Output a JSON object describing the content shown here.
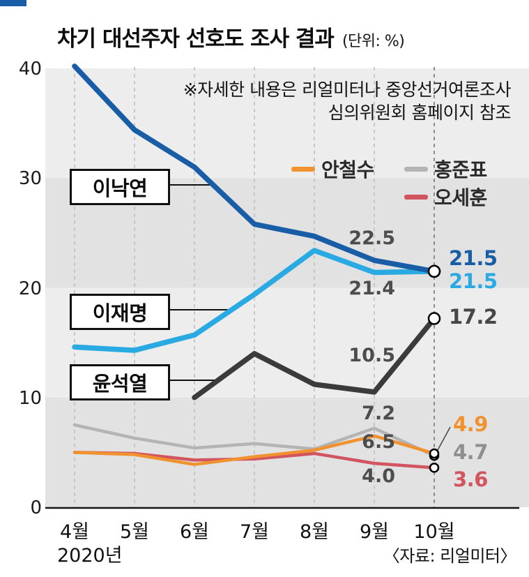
{
  "chart_data": {
    "type": "line",
    "title": "차기 대선주자 선호도 조사 결과",
    "unit": "(단위: %)",
    "note": [
      "※자세한 내용은 리얼미터나 중앙선거여론조사",
      "심의위원회 홈페이지 참조"
    ],
    "source": "〈자료: 리얼미터〉",
    "x_year": "2020년",
    "categories": [
      "4월",
      "5월",
      "6월",
      "7월",
      "8월",
      "9월",
      "10월"
    ],
    "yticks": [
      0,
      10,
      20,
      30,
      40
    ],
    "ylim": [
      0,
      40
    ],
    "grid": "vertical-dashed",
    "legend_position": "inside-top-right",
    "series": [
      {
        "id": "lee-nak-yeon",
        "name": "이낙연",
        "color": "#1a5da7",
        "end_label": "21.5",
        "end_label_color": "#1a5da7",
        "values": [
          40.2,
          34.4,
          31.0,
          25.8,
          24.7,
          22.5,
          21.5
        ]
      },
      {
        "id": "lee-jae-myung",
        "name": "이재명",
        "color": "#2aaae2",
        "end_label": "21.5",
        "end_label_color": "#2aaae2",
        "values": [
          14.6,
          14.3,
          15.7,
          19.4,
          23.4,
          21.4,
          21.5
        ]
      },
      {
        "id": "yoon-seok-youl",
        "name": "윤석열",
        "color": "#3b3b3b",
        "end_label": "17.2",
        "end_label_color": "#474747",
        "values": [
          null,
          null,
          10.0,
          14.0,
          11.2,
          10.5,
          17.2
        ]
      },
      {
        "id": "ahn-cheol-soo",
        "name": "안철수",
        "color": "#f0922f",
        "end_label": "4.9",
        "end_label_color": "#f0922f",
        "values": [
          5.0,
          4.8,
          3.9,
          4.6,
          5.2,
          6.5,
          4.9
        ]
      },
      {
        "id": "hong-jun-pyo",
        "name": "홍준표",
        "color": "#b4b4b4",
        "end_label": "4.7",
        "end_label_color": "#8f8f8f",
        "values": [
          7.5,
          6.3,
          5.4,
          5.8,
          5.3,
          7.2,
          4.7
        ]
      },
      {
        "id": "oh-se-hoon",
        "name": "오세훈",
        "color": "#d2545f",
        "end_label": "3.6",
        "end_label_color": "#d2545f",
        "values": [
          5.0,
          4.9,
          4.3,
          4.4,
          4.9,
          4.0,
          3.6
        ]
      }
    ],
    "point_labels": [
      {
        "series": "이낙연",
        "month": "9월",
        "value": 22.5,
        "text": "22.5"
      },
      {
        "series": "이재명",
        "month": "9월",
        "value": 21.4,
        "text": "21.4"
      },
      {
        "series": "윤석열",
        "month": "9월",
        "value": 10.5,
        "text": "10.5"
      },
      {
        "series": "홍준표",
        "month": "9월",
        "value": 7.2,
        "text": "7.2"
      },
      {
        "series": "안철수",
        "month": "9월",
        "value": 6.5,
        "text": "6.5"
      },
      {
        "series": "오세훈",
        "month": "9월",
        "value": 4.0,
        "text": "4.0"
      }
    ]
  }
}
